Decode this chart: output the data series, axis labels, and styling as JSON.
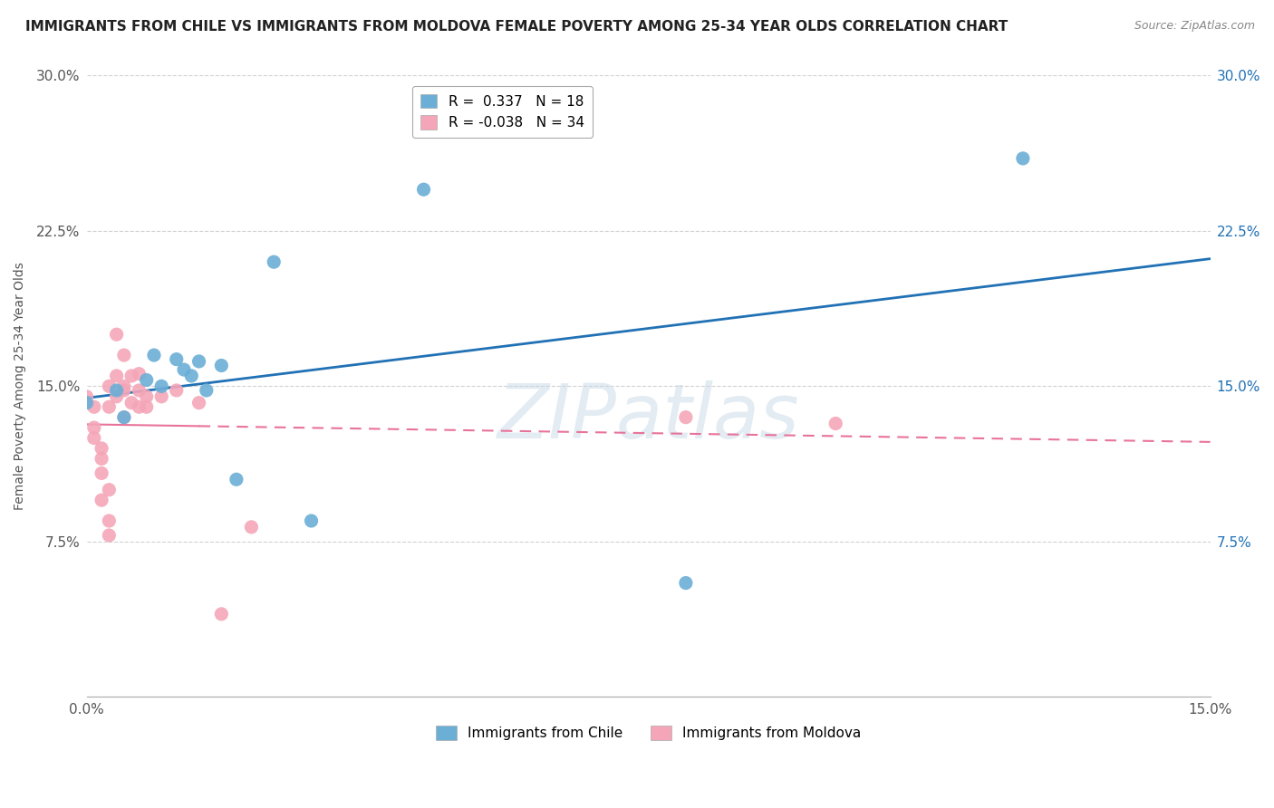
{
  "title": "IMMIGRANTS FROM CHILE VS IMMIGRANTS FROM MOLDOVA FEMALE POVERTY AMONG 25-34 YEAR OLDS CORRELATION CHART",
  "source": "Source: ZipAtlas.com",
  "ylabel": "Female Poverty Among 25-34 Year Olds",
  "xlim": [
    0.0,
    0.15
  ],
  "ylim": [
    0.0,
    0.3
  ],
  "xtick_positions": [
    0.0,
    0.15
  ],
  "xtick_labels": [
    "0.0%",
    "15.0%"
  ],
  "ytick_values": [
    0.075,
    0.15,
    0.225,
    0.3
  ],
  "ytick_labels": [
    "7.5%",
    "15.0%",
    "22.5%",
    "30.0%"
  ],
  "chile_color": "#6baed6",
  "moldova_color": "#f4a6b8",
  "chile_line_color": "#2171b5",
  "moldova_line_color": "#e8739a",
  "background_color": "#ffffff",
  "grid_color": "#cccccc",
  "watermark": "ZIPatlas",
  "legend_r_chile": "R =  0.337",
  "legend_n_chile": "N = 18",
  "legend_r_moldova": "R = -0.038",
  "legend_n_moldova": "N = 34",
  "chile_scatter": [
    [
      0.0,
      0.142
    ],
    [
      0.004,
      0.148
    ],
    [
      0.005,
      0.135
    ],
    [
      0.008,
      0.153
    ],
    [
      0.009,
      0.165
    ],
    [
      0.01,
      0.15
    ],
    [
      0.012,
      0.163
    ],
    [
      0.013,
      0.158
    ],
    [
      0.014,
      0.155
    ],
    [
      0.015,
      0.162
    ],
    [
      0.016,
      0.148
    ],
    [
      0.018,
      0.16
    ],
    [
      0.02,
      0.105
    ],
    [
      0.025,
      0.21
    ],
    [
      0.03,
      0.085
    ],
    [
      0.045,
      0.245
    ],
    [
      0.08,
      0.055
    ],
    [
      0.125,
      0.26
    ]
  ],
  "moldova_scatter": [
    [
      0.0,
      0.145
    ],
    [
      0.001,
      0.125
    ],
    [
      0.001,
      0.13
    ],
    [
      0.001,
      0.14
    ],
    [
      0.002,
      0.115
    ],
    [
      0.002,
      0.12
    ],
    [
      0.002,
      0.108
    ],
    [
      0.002,
      0.095
    ],
    [
      0.003,
      0.14
    ],
    [
      0.003,
      0.15
    ],
    [
      0.003,
      0.1
    ],
    [
      0.003,
      0.085
    ],
    [
      0.003,
      0.078
    ],
    [
      0.004,
      0.175
    ],
    [
      0.004,
      0.155
    ],
    [
      0.004,
      0.145
    ],
    [
      0.005,
      0.165
    ],
    [
      0.005,
      0.15
    ],
    [
      0.005,
      0.148
    ],
    [
      0.005,
      0.135
    ],
    [
      0.006,
      0.155
    ],
    [
      0.006,
      0.142
    ],
    [
      0.007,
      0.156
    ],
    [
      0.007,
      0.148
    ],
    [
      0.007,
      0.14
    ],
    [
      0.008,
      0.14
    ],
    [
      0.008,
      0.145
    ],
    [
      0.01,
      0.145
    ],
    [
      0.012,
      0.148
    ],
    [
      0.015,
      0.142
    ],
    [
      0.018,
      0.04
    ],
    [
      0.022,
      0.082
    ],
    [
      0.08,
      0.135
    ],
    [
      0.1,
      0.132
    ]
  ],
  "title_fontsize": 11,
  "axis_label_fontsize": 10,
  "tick_fontsize": 11,
  "legend_fontsize": 11
}
